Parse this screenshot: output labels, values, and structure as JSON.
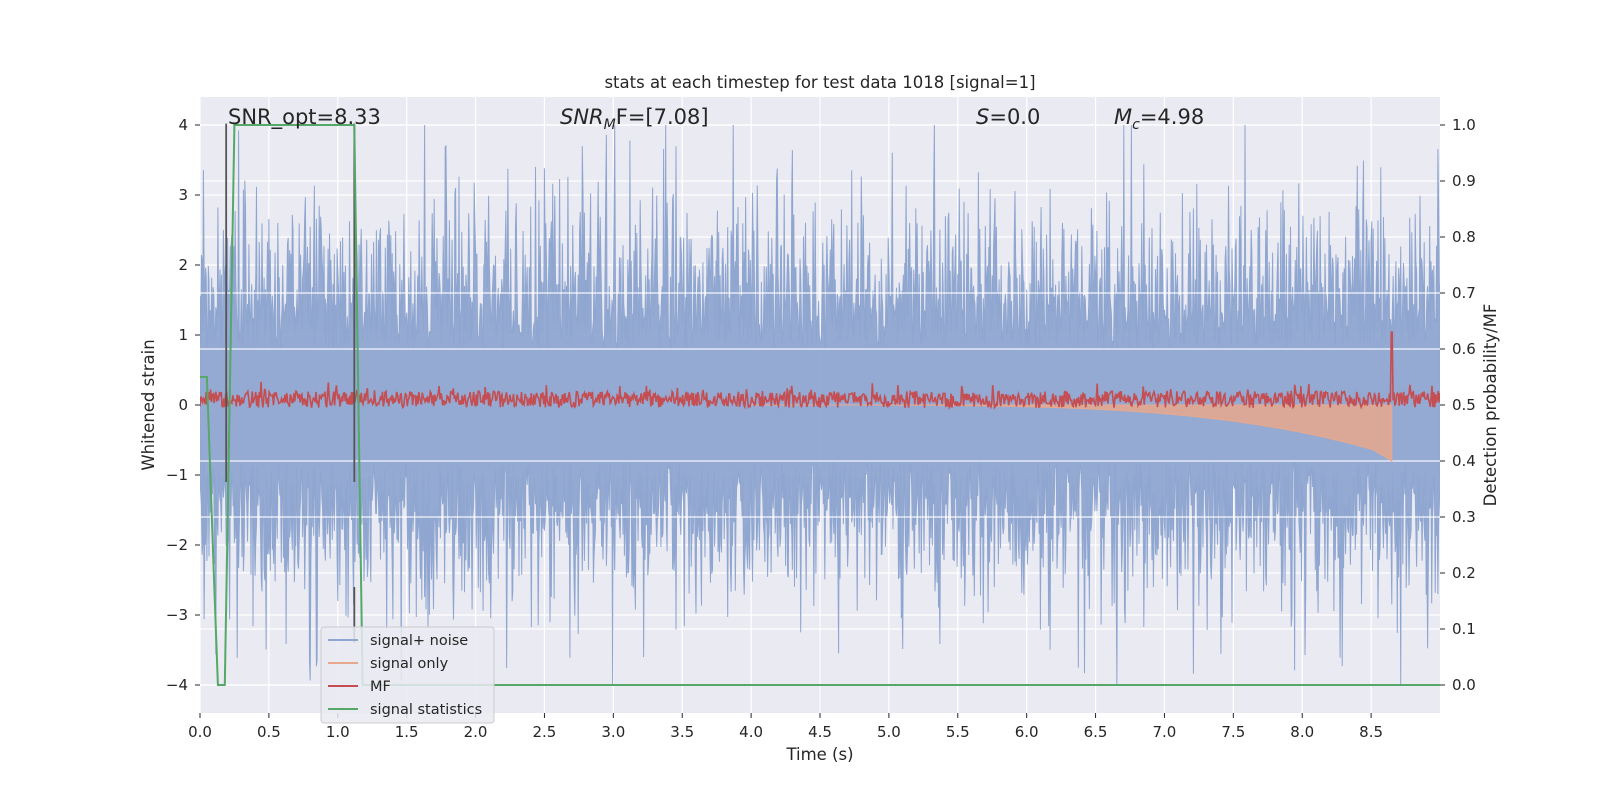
{
  "chart_data": {
    "type": "line",
    "title": "stats at each timestep for test data 1018 [signal=1]",
    "xlabel": "Time (s)",
    "ylabel_left": "Whitened strain",
    "ylabel_right": "Detection probability/MF",
    "xlim": [
      0,
      9.0
    ],
    "ylim_left": [
      -4.4,
      4.4
    ],
    "ylim_right": [
      -0.05,
      1.05
    ],
    "x_ticks": [
      "0.0",
      "0.5",
      "1.0",
      "1.5",
      "2.0",
      "2.5",
      "3.0",
      "3.5",
      "4.0",
      "4.5",
      "5.0",
      "5.5",
      "6.0",
      "6.5",
      "7.0",
      "7.5",
      "8.0",
      "8.5"
    ],
    "y_ticks_left": [
      "−4",
      "−3",
      "−2",
      "−1",
      "0",
      "1",
      "2",
      "3",
      "4"
    ],
    "y_ticks_right": [
      "0.0",
      "0.1",
      "0.2",
      "0.3",
      "0.4",
      "0.5",
      "0.6",
      "0.7",
      "0.8",
      "0.9",
      "1.0"
    ],
    "grid": true,
    "legend_position": "lower-left",
    "annotations": [
      {
        "id": "snr_opt",
        "text": "SNR_opt=8.33"
      },
      {
        "id": "snr_mf",
        "prefix": "SNR",
        "sub": "M",
        "suffix": "F=[7.08]"
      },
      {
        "id": "s_stat",
        "prefix": "S",
        "suffix": "=0.0"
      },
      {
        "id": "mc",
        "prefix": "M",
        "sub": "c",
        "suffix": "=4.98"
      }
    ],
    "series": [
      {
        "name": "signal+ noise",
        "color": "#8fa6d0",
        "kind": "noise",
        "band_std": 0.8,
        "peak_range": [
          1.5,
          4.0
        ]
      },
      {
        "name": "signal only",
        "color": "#e8a88d",
        "kind": "chirp",
        "end_time": 8.65,
        "min_value": -0.8
      },
      {
        "name": "MF",
        "color": "#c44e52",
        "axis": "right",
        "baseline": 0.51,
        "typical_peak": 0.54,
        "max": 0.63,
        "max_at": 8.65
      },
      {
        "name": "signal statistics",
        "color": "#55a868",
        "axis": "right",
        "x": [
          0.0,
          0.05,
          0.1,
          0.13,
          0.18,
          0.25,
          1.12,
          1.18,
          1.22,
          9.0
        ],
        "y": [
          0.55,
          0.55,
          0.2,
          0.0,
          0.0,
          1.0,
          1.0,
          0.0,
          0.0,
          0.0
        ]
      }
    ],
    "vertical_markers": [
      0.19,
      1.12
    ]
  }
}
